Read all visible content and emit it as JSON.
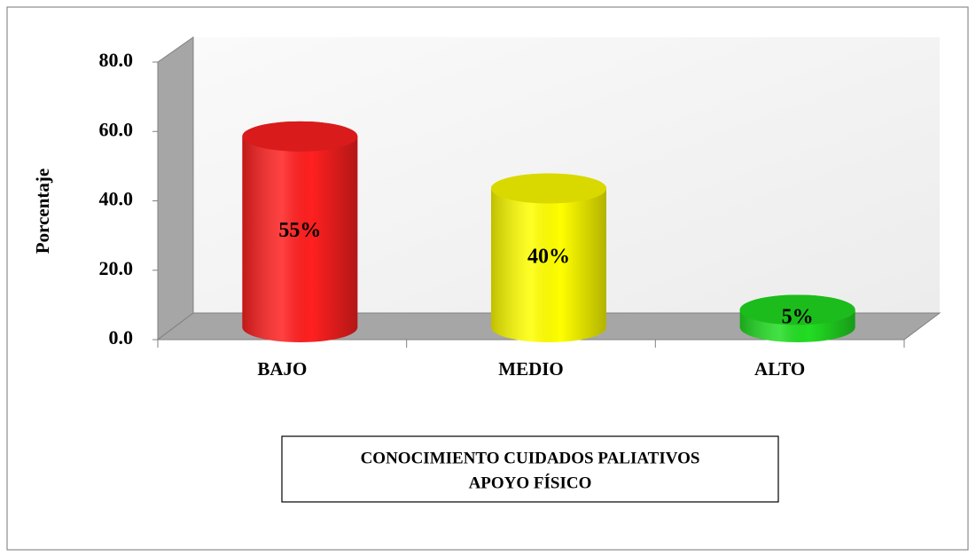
{
  "chart_data": {
    "type": "bar3d",
    "ylabel": "Porcentaje",
    "xlabel": [
      "CONOCIMIENTO CUIDADOS PALIATIVOS",
      "APOYO FÍSICO"
    ],
    "categories": [
      "BAJO",
      "MEDIO",
      "ALTO"
    ],
    "values": [
      55,
      40,
      5
    ],
    "value_labels": [
      "55%",
      "40%",
      "5%"
    ],
    "colors": [
      "#ff2020",
      "#ffff00",
      "#22dd22"
    ],
    "ylim": [
      0,
      80
    ],
    "yticks": [
      {
        "value": 0,
        "label": "0.0"
      },
      {
        "value": 20,
        "label": "20.0"
      },
      {
        "value": 40,
        "label": "40.0"
      },
      {
        "value": 60,
        "label": "60.0"
      },
      {
        "value": 80,
        "label": "80.0"
      }
    ]
  }
}
